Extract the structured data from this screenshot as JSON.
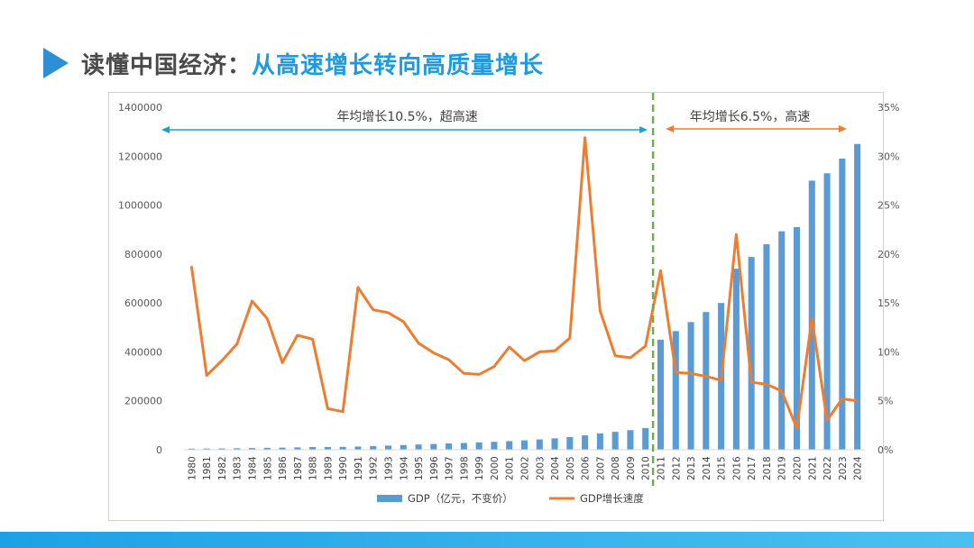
{
  "slide": {
    "title_prefix": "读懂中国经济：",
    "title_accent": "从高速增长转向高质量增长"
  },
  "colors": {
    "bar": "#5b9bd5",
    "line": "#ed7d31",
    "divider": "#70ad47",
    "accent": "#1e9be0",
    "annot_left": "#1aa0d8",
    "annot_right": "#ed7d31"
  },
  "chart_data": {
    "type": "bar",
    "categories": [
      "1980",
      "1981",
      "1982",
      "1983",
      "1984",
      "1985",
      "1986",
      "1987",
      "1988",
      "1989",
      "1990",
      "1991",
      "1992",
      "1993",
      "1994",
      "1995",
      "1996",
      "1997",
      "1998",
      "1999",
      "2000",
      "2001",
      "2002",
      "2003",
      "2004",
      "2005",
      "2006",
      "2007",
      "2008",
      "2009",
      "2010",
      "2011",
      "2012",
      "2013",
      "2014",
      "2015",
      "2016",
      "2017",
      "2018",
      "2019",
      "2020",
      "2021",
      "2022",
      "2023",
      "2024"
    ],
    "series": [
      {
        "name": "GDP（亿元，不变价）",
        "type": "bar",
        "axis": "left",
        "values": [
          4600,
          4800,
          5300,
          6000,
          7000,
          7900,
          8700,
          9800,
          11000,
          11400,
          11900,
          13100,
          15000,
          17000,
          19300,
          21400,
          23600,
          25800,
          27800,
          30000,
          32500,
          35200,
          38400,
          42300,
          46600,
          51900,
          58500,
          66800,
          73200,
          80100,
          88600,
          450000,
          485000,
          522000,
          563000,
          600000,
          740000,
          788000,
          840000,
          893000,
          910000,
          1100000,
          1130000,
          1190000,
          1250000
        ]
      },
      {
        "name": "GDP增长速度",
        "type": "line",
        "axis": "right",
        "values": [
          18.7,
          7.6,
          9.1,
          10.8,
          15.2,
          13.4,
          8.9,
          11.7,
          11.3,
          4.2,
          3.9,
          16.6,
          14.3,
          14.0,
          13.1,
          10.9,
          9.9,
          9.2,
          7.8,
          7.7,
          8.5,
          10.5,
          9.1,
          10.0,
          10.1,
          11.4,
          31.9,
          14.2,
          9.6,
          9.4,
          10.6,
          18.3,
          7.9,
          7.8,
          7.5,
          7.1,
          22.0,
          6.9,
          6.7,
          6.0,
          2.2,
          13.4,
          3.0,
          5.2,
          5.0
        ]
      }
    ],
    "y_left": {
      "min": 0,
      "max": 1400000,
      "ticks": [
        "0",
        "200000",
        "400000",
        "600000",
        "800000",
        "1000000",
        "1200000",
        "1400000"
      ]
    },
    "y_right": {
      "min": 0,
      "max": 35,
      "ticks": [
        "0%",
        "5%",
        "10%",
        "15%",
        "20%",
        "25%",
        "30%",
        "35%"
      ]
    },
    "annotations": {
      "left_text": "年均增长10.5%，超高速",
      "right_text": "年均增长6.5%，高速",
      "divider_after": "2010"
    },
    "legend": {
      "position": "bottom"
    },
    "grid": false,
    "title": "",
    "xlabel": "",
    "ylabel": ""
  }
}
